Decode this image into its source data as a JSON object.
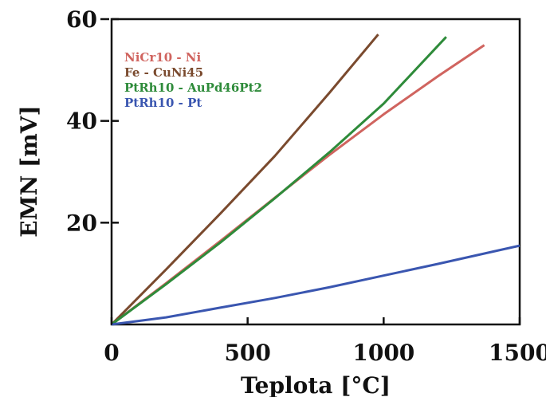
{
  "chart_data": {
    "type": "line",
    "xlabel": "Teplota [°C]",
    "ylabel": "EMN [mV]",
    "xlim": [
      0,
      1500
    ],
    "ylim": [
      0,
      60
    ],
    "xticks": [
      0,
      500,
      1000,
      1500
    ],
    "yticks": [
      20,
      40,
      60
    ],
    "grid": false,
    "legend_position": "top-left",
    "series": [
      {
        "name": "NiCr10 - Ni",
        "color": "#d0645f",
        "x": [
          0,
          200,
          400,
          600,
          800,
          1000,
          1200,
          1370
        ],
        "y": [
          0,
          8.1,
          16.4,
          24.9,
          33.3,
          41.3,
          48.8,
          54.9
        ]
      },
      {
        "name": "Fe - CuNi45",
        "color": "#7a4a2e",
        "x": [
          0,
          200,
          400,
          600,
          800,
          980
        ],
        "y": [
          0,
          10.8,
          21.8,
          33.1,
          45.5,
          57.0
        ]
      },
      {
        "name": "PtRh10 - AuPd46Pt2",
        "color": "#2e8b3a",
        "x": [
          0,
          200,
          400,
          600,
          800,
          1000,
          1230
        ],
        "y": [
          0,
          7.9,
          16.1,
          24.8,
          33.8,
          43.4,
          56.5
        ]
      },
      {
        "name": "PtRh10 - Pt",
        "color": "#3a56b0",
        "x": [
          0,
          200,
          400,
          600,
          800,
          1000,
          1200,
          1500
        ],
        "y": [
          0,
          1.4,
          3.3,
          5.2,
          7.3,
          9.6,
          11.9,
          15.5
        ]
      }
    ]
  }
}
